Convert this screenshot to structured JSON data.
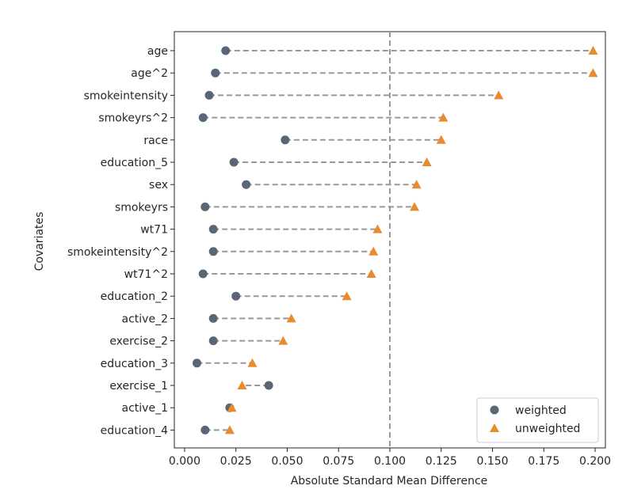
{
  "chart_data": {
    "type": "scatter",
    "title": "",
    "xlabel": "Absolute Standard Mean Difference",
    "ylabel": "Covariates",
    "xlim": [
      -0.005,
      0.205
    ],
    "xticks": [
      "0.000",
      "0.025",
      "0.050",
      "0.075",
      "0.100",
      "0.125",
      "0.150",
      "0.175",
      "0.200"
    ],
    "xtick_values": [
      0,
      0.025,
      0.05,
      0.075,
      0.1,
      0.125,
      0.15,
      0.175,
      0.2
    ],
    "reference_line": 0.1,
    "categories": [
      "age",
      "age^2",
      "smokeintensity",
      "smokeyrs^2",
      "race",
      "education_5",
      "sex",
      "smokeyrs",
      "wt71",
      "smokeintensity^2",
      "wt71^2",
      "education_2",
      "active_2",
      "exercise_2",
      "education_3",
      "exercise_1",
      "active_1",
      "education_4"
    ],
    "series": [
      {
        "name": "weighted",
        "marker": "circle",
        "color": "#5a6575",
        "values": [
          0.02,
          0.015,
          0.012,
          0.009,
          0.049,
          0.024,
          0.03,
          0.01,
          0.014,
          0.014,
          0.009,
          0.025,
          0.014,
          0.014,
          0.006,
          0.041,
          0.022,
          0.01
        ]
      },
      {
        "name": "unweighted",
        "marker": "triangle",
        "color": "#e88a2e",
        "values": [
          0.199,
          0.199,
          0.153,
          0.126,
          0.125,
          0.118,
          0.113,
          0.112,
          0.094,
          0.092,
          0.091,
          0.079,
          0.052,
          0.048,
          0.033,
          0.028,
          0.023,
          0.022
        ]
      }
    ],
    "legend_position": "bottom-right",
    "grid": false
  }
}
